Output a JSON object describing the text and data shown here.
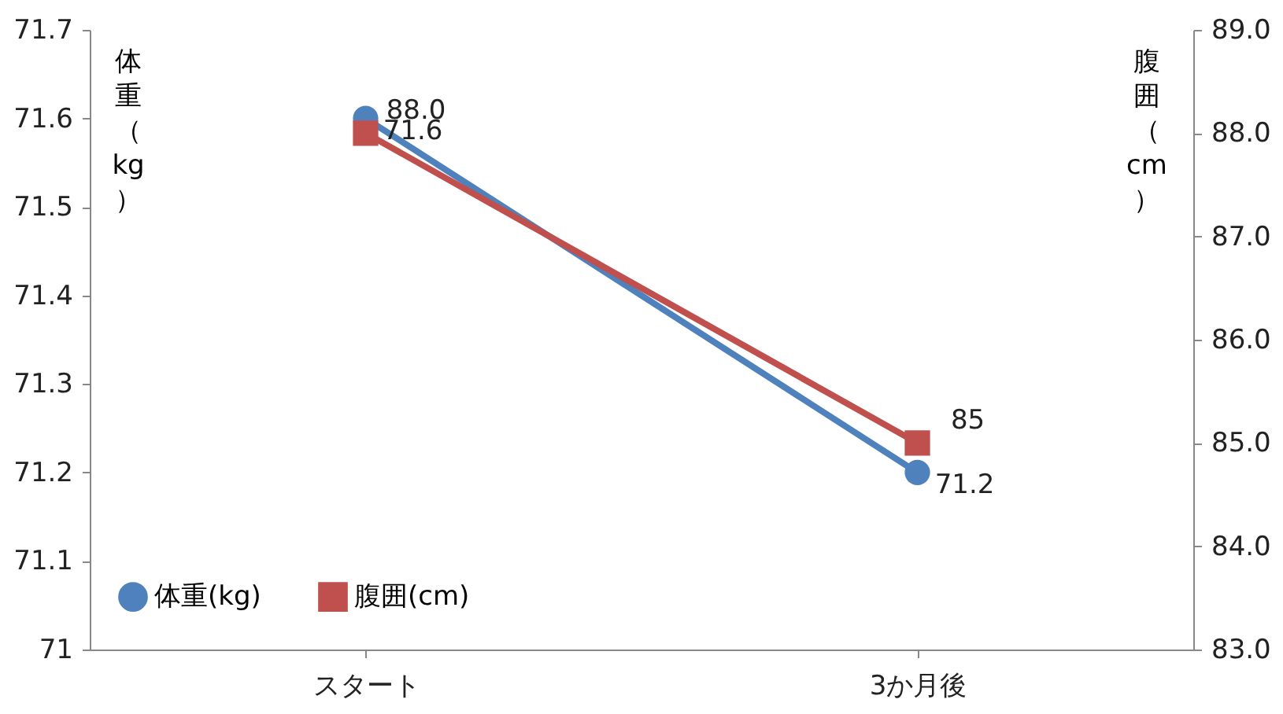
{
  "chart_data": {
    "type": "line",
    "categories": [
      "スタート",
      "3か月後"
    ],
    "ylabel": "体重（kg）",
    "y2label": "腹囲（cm）",
    "ylim": [
      71,
      71.7
    ],
    "yticks": [
      71,
      71.1,
      71.2,
      71.3,
      71.4,
      71.5,
      71.6,
      71.7
    ],
    "y2lim": [
      83,
      89
    ],
    "y2ticks": [
      {
        "value": 83,
        "label": "83.0"
      },
      {
        "value": 84,
        "label": "84.0"
      },
      {
        "value": 85,
        "label": "85.0"
      },
      {
        "value": 86,
        "label": "86.0"
      },
      {
        "value": 87,
        "label": "87.0"
      },
      {
        "value": 88,
        "label": "88.0"
      },
      {
        "value": 89,
        "label": "89.0"
      }
    ],
    "legend": "bottom left",
    "grid": false,
    "series": [
      {
        "name": "体重(kg)",
        "color": "#4f81bd",
        "marker": "circle",
        "values": [
          71.6,
          71.2
        ],
        "value_labels": [
          "71.6",
          "71.2"
        ]
      },
      {
        "name": "腹囲(cm)",
        "color": "#c0504d",
        "marker": "square",
        "axis": "y2",
        "values": [
          88,
          85
        ],
        "value_labels": [
          "88.0",
          "85"
        ]
      }
    ]
  }
}
